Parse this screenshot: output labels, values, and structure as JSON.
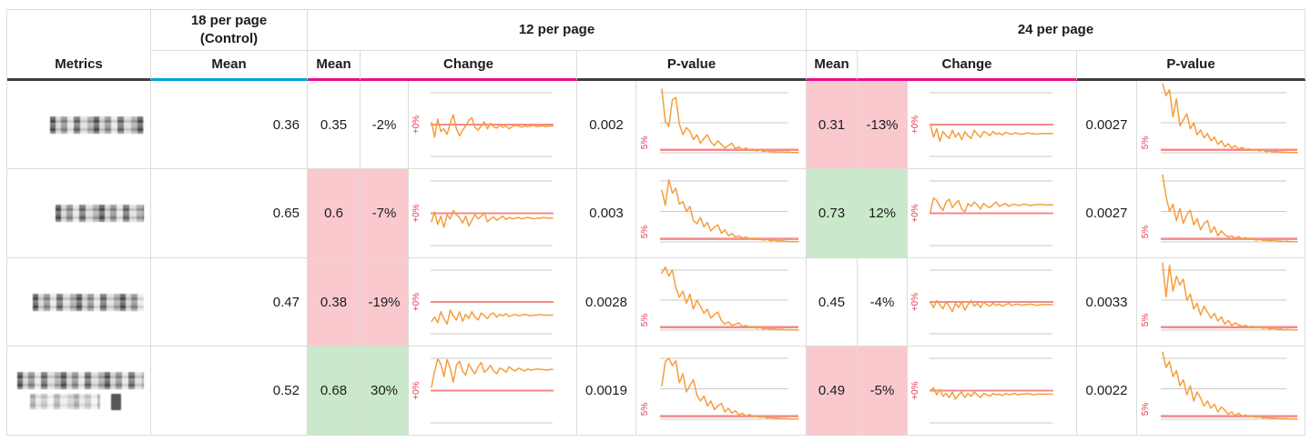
{
  "table": {
    "header": {
      "metrics_label": "Metrics",
      "control": {
        "title": "18 per page (Control)",
        "title_line1": "18 per page",
        "title_line2": "(Control)",
        "mean_label": "Mean"
      },
      "variants": [
        {
          "title": "12 per page",
          "mean_label": "Mean",
          "change_label": "Change",
          "pvalue_label": "P-value"
        },
        {
          "title": "24 per page",
          "mean_label": "Mean",
          "change_label": "Change",
          "pvalue_label": "P-value"
        }
      ]
    },
    "rows": [
      {
        "metric_name_redacted": true,
        "control_mean": "0.36",
        "variants": [
          {
            "mean": "0.35",
            "change": "-2%",
            "pvalue": "0.002",
            "highlight": "none"
          },
          {
            "mean": "0.31",
            "change": "-13%",
            "pvalue": "0.0027",
            "highlight": "negative"
          }
        ]
      },
      {
        "metric_name_redacted": true,
        "control_mean": "0.65",
        "variants": [
          {
            "mean": "0.6",
            "change": "-7%",
            "pvalue": "0.003",
            "highlight": "negative"
          },
          {
            "mean": "0.73",
            "change": "12%",
            "pvalue": "0.0027",
            "highlight": "positive"
          }
        ]
      },
      {
        "metric_name_redacted": true,
        "control_mean": "0.47",
        "variants": [
          {
            "mean": "0.38",
            "change": "-19%",
            "pvalue": "0.0028",
            "highlight": "negative"
          },
          {
            "mean": "0.45",
            "change": "-4%",
            "pvalue": "0.0033",
            "highlight": "none"
          }
        ]
      },
      {
        "metric_name_redacted": true,
        "control_mean": "0.52",
        "variants": [
          {
            "mean": "0.68",
            "change": "30%",
            "pvalue": "0.0019",
            "highlight": "positive"
          },
          {
            "mean": "0.49",
            "change": "-5%",
            "pvalue": "0.0022",
            "highlight": "negative"
          }
        ]
      }
    ]
  },
  "colors": {
    "negative_bg": "#f9c9ce",
    "positive_bg": "#c9e9ca",
    "accent_cyan": "#00a4dc",
    "accent_magenta": "#eb0d8c",
    "accent_dark": "#3d3d3d",
    "line_orange": "#f59e3d",
    "ref_line": "#f48a8a",
    "ref_label": "#e8384f",
    "gridline": "#c9c9c9",
    "border": "#dcdcdc",
    "text": "#1c1c1e"
  },
  "chart_data": {
    "type": "line",
    "description": "Per metric row and page-size variant: relative change over time (%) vs +0% reference, and p-value over time vs 5% significance line.",
    "rows": [
      {
        "metric": "(redacted)",
        "control_mean": 0.36,
        "variants": [
          {
            "variant": "12 per page",
            "mean": 0.35,
            "change_pct": -2,
            "pvalue": 0.002,
            "change_axis_label": "+0%",
            "pvalue_axis_label": "5%",
            "pvalue_ref": 0.05,
            "change_series_pct": [
              3,
              -18,
              8,
              -10,
              -6,
              -14,
              2,
              14,
              -6,
              -16,
              -8,
              -2,
              6,
              10,
              -4,
              -8,
              -2,
              4,
              -6,
              2,
              -3,
              -5,
              -1,
              -4,
              -2,
              -6,
              -3,
              -1,
              -2,
              -4,
              -2,
              -3,
              -2,
              -1,
              -3,
              -2,
              -2,
              -3,
              -2,
              -2
            ],
            "pvalue_series": [
              1.06,
              0.52,
              0.44,
              0.88,
              0.92,
              0.48,
              0.3,
              0.42,
              0.36,
              0.22,
              0.3,
              0.16,
              0.24,
              0.3,
              0.18,
              0.12,
              0.2,
              0.14,
              0.08,
              0.12,
              0.16,
              0.07,
              0.1,
              0.05,
              0.08,
              0.04,
              0.06,
              0.03,
              0.05,
              0.02,
              0.035,
              0.015,
              0.02,
              0.01,
              0.015,
              0.008,
              0.01,
              0.005,
              0.004,
              0.002
            ]
          },
          {
            "variant": "24 per page",
            "mean": 0.31,
            "change_pct": -13,
            "pvalue": 0.0027,
            "change_axis_label": "+0%",
            "pvalue_axis_label": "5%",
            "pvalue_ref": 0.05,
            "change_series_pct": [
              0,
              -18,
              -6,
              -24,
              -10,
              -16,
              -20,
              -8,
              -18,
              -12,
              -22,
              -10,
              -16,
              -20,
              -8,
              -14,
              -18,
              -10,
              -12,
              -16,
              -10,
              -14,
              -12,
              -15,
              -11,
              -13,
              -14,
              -12,
              -13,
              -14,
              -13,
              -12,
              -13,
              -13,
              -14,
              -13,
              -13,
              -13,
              -13,
              -13
            ],
            "pvalue_series": [
              1.15,
              0.95,
              1.05,
              0.6,
              0.9,
              0.45,
              0.55,
              0.65,
              0.4,
              0.5,
              0.3,
              0.38,
              0.25,
              0.32,
              0.2,
              0.26,
              0.14,
              0.2,
              0.1,
              0.15,
              0.08,
              0.12,
              0.06,
              0.09,
              0.05,
              0.07,
              0.04,
              0.055,
              0.03,
              0.045,
              0.02,
              0.03,
              0.015,
              0.02,
              0.01,
              0.012,
              0.007,
              0.005,
              0.004,
              0.0027
            ]
          }
        ]
      },
      {
        "metric": "(redacted)",
        "control_mean": 0.65,
        "variants": [
          {
            "variant": "12 per page",
            "mean": 0.6,
            "change_pct": -7,
            "pvalue": 0.003,
            "change_axis_label": "+0%",
            "pvalue_axis_label": "5%",
            "pvalue_ref": 0.05,
            "change_series_pct": [
              -12,
              2,
              -16,
              -4,
              -20,
              -2,
              -8,
              4,
              -2,
              -6,
              -14,
              -4,
              -18,
              -10,
              -2,
              -8,
              -4,
              0,
              -12,
              -8,
              -5,
              -10,
              -7,
              -4,
              -9,
              -6,
              -8,
              -7,
              -6,
              -8,
              -7,
              -6,
              -7,
              -8,
              -7,
              -7,
              -6,
              -7,
              -7,
              -7
            ],
            "pvalue_series": [
              0.85,
              0.6,
              1.02,
              0.8,
              0.88,
              0.62,
              0.66,
              0.5,
              0.58,
              0.35,
              0.3,
              0.4,
              0.25,
              0.32,
              0.18,
              0.24,
              0.28,
              0.14,
              0.2,
              0.1,
              0.14,
              0.08,
              0.1,
              0.06,
              0.08,
              0.05,
              0.06,
              0.04,
              0.05,
              0.03,
              0.04,
              0.02,
              0.03,
              0.015,
              0.02,
              0.01,
              0.008,
              0.006,
              0.004,
              0.003
            ]
          },
          {
            "variant": "24 per page",
            "mean": 0.73,
            "change_pct": 12,
            "pvalue": 0.0027,
            "change_axis_label": "+0%",
            "pvalue_axis_label": "5%",
            "pvalue_ref": 0.05,
            "change_series_pct": [
              2,
              22,
              18,
              10,
              4,
              16,
              20,
              8,
              14,
              18,
              6,
              2,
              14,
              10,
              16,
              12,
              6,
              14,
              10,
              8,
              12,
              16,
              10,
              12,
              14,
              10,
              12,
              13,
              11,
              12,
              13,
              12,
              11,
              12,
              12,
              13,
              12,
              12,
              12,
              12
            ],
            "pvalue_series": [
              1.1,
              0.75,
              0.5,
              0.62,
              0.35,
              0.55,
              0.3,
              0.45,
              0.52,
              0.28,
              0.38,
              0.2,
              0.3,
              0.35,
              0.15,
              0.25,
              0.1,
              0.18,
              0.12,
              0.08,
              0.1,
              0.06,
              0.09,
              0.05,
              0.07,
              0.04,
              0.05,
              0.03,
              0.04,
              0.025,
              0.03,
              0.02,
              0.025,
              0.012,
              0.015,
              0.008,
              0.01,
              0.005,
              0.004,
              0.0027
            ]
          }
        ]
      },
      {
        "metric": "(redacted)",
        "control_mean": 0.47,
        "variants": [
          {
            "variant": "12 per page",
            "mean": 0.38,
            "change_pct": -19,
            "pvalue": 0.0028,
            "change_axis_label": "+0%",
            "pvalue_axis_label": "5%",
            "pvalue_ref": 0.05,
            "change_series_pct": [
              -28,
              -22,
              -30,
              -14,
              -24,
              -32,
              -12,
              -20,
              -26,
              -14,
              -28,
              -18,
              -24,
              -14,
              -22,
              -26,
              -16,
              -20,
              -24,
              -18,
              -16,
              -22,
              -18,
              -20,
              -17,
              -21,
              -19,
              -18,
              -20,
              -19,
              -18,
              -19,
              -20,
              -19,
              -19,
              -18,
              -19,
              -19,
              -19,
              -19
            ],
            "pvalue_series": [
              0.95,
              1.05,
              0.9,
              1.0,
              0.7,
              0.55,
              0.65,
              0.45,
              0.6,
              0.35,
              0.5,
              0.4,
              0.28,
              0.35,
              0.2,
              0.26,
              0.3,
              0.16,
              0.1,
              0.14,
              0.08,
              0.1,
              0.12,
              0.06,
              0.08,
              0.04,
              0.06,
              0.03,
              0.045,
              0.02,
              0.03,
              0.015,
              0.02,
              0.01,
              0.015,
              0.008,
              0.006,
              0.005,
              0.004,
              0.0028
            ]
          },
          {
            "variant": "24 per page",
            "mean": 0.45,
            "change_pct": -4,
            "pvalue": 0.0033,
            "change_axis_label": "+0%",
            "pvalue_axis_label": "5%",
            "pvalue_ref": 0.05,
            "change_series_pct": [
              0,
              -8,
              2,
              -4,
              -10,
              0,
              -6,
              -14,
              -2,
              -8,
              0,
              -12,
              -4,
              2,
              -6,
              -2,
              -8,
              0,
              -4,
              -6,
              -2,
              -5,
              -3,
              -6,
              -4,
              -2,
              -5,
              -4,
              -3,
              -5,
              -4,
              -4,
              -3,
              -4,
              -5,
              -4,
              -4,
              -4,
              -4,
              -4
            ],
            "pvalue_series": [
              1.12,
              0.55,
              1.08,
              0.65,
              0.9,
              0.75,
              0.85,
              0.5,
              0.6,
              0.35,
              0.45,
              0.25,
              0.4,
              0.3,
              0.2,
              0.28,
              0.15,
              0.22,
              0.1,
              0.16,
              0.08,
              0.12,
              0.09,
              0.06,
              0.08,
              0.05,
              0.065,
              0.04,
              0.05,
              0.03,
              0.04,
              0.02,
              0.03,
              0.012,
              0.018,
              0.008,
              0.01,
              0.006,
              0.004,
              0.0033
            ]
          }
        ]
      },
      {
        "metric": "(redacted)",
        "control_mean": 0.52,
        "variants": [
          {
            "variant": "12 per page",
            "mean": 0.68,
            "change_pct": 30,
            "pvalue": 0.0019,
            "change_axis_label": "+0%",
            "pvalue_axis_label": "5%",
            "pvalue_ref": 0.05,
            "change_series_pct": [
              5,
              28,
              45,
              38,
              20,
              44,
              32,
              12,
              36,
              42,
              28,
              22,
              38,
              30,
              24,
              34,
              40,
              26,
              30,
              36,
              28,
              24,
              32,
              30,
              26,
              34,
              30,
              28,
              32,
              30,
              28,
              31,
              29,
              30,
              31,
              30,
              30,
              29,
              30,
              30
            ],
            "pvalue_series": [
              0.55,
              0.95,
              1.0,
              0.88,
              0.96,
              0.6,
              0.75,
              0.45,
              0.55,
              0.65,
              0.4,
              0.3,
              0.38,
              0.22,
              0.3,
              0.16,
              0.22,
              0.26,
              0.12,
              0.18,
              0.1,
              0.14,
              0.07,
              0.1,
              0.05,
              0.08,
              0.04,
              0.06,
              0.03,
              0.04,
              0.02,
              0.03,
              0.015,
              0.02,
              0.01,
              0.012,
              0.006,
              0.004,
              0.003,
              0.0019
            ]
          },
          {
            "variant": "24 per page",
            "mean": 0.49,
            "change_pct": -5,
            "pvalue": 0.0022,
            "change_axis_label": "+0%",
            "pvalue_axis_label": "5%",
            "pvalue_ref": 0.05,
            "change_series_pct": [
              0,
              4,
              -6,
              2,
              -8,
              -4,
              -10,
              -2,
              -12,
              -6,
              -2,
              -10,
              -4,
              -8,
              -2,
              -6,
              -10,
              -4,
              -6,
              -8,
              -4,
              -6,
              -5,
              -7,
              -4,
              -6,
              -5,
              -4,
              -6,
              -5,
              -5,
              -4,
              -5,
              -6,
              -5,
              -5,
              -5,
              -5,
              -5,
              -5
            ],
            "pvalue_series": [
              1.1,
              0.85,
              0.95,
              0.7,
              0.8,
              0.55,
              0.65,
              0.4,
              0.55,
              0.3,
              0.45,
              0.35,
              0.22,
              0.3,
              0.18,
              0.25,
              0.12,
              0.2,
              0.15,
              0.08,
              0.12,
              0.06,
              0.1,
              0.05,
              0.07,
              0.04,
              0.055,
              0.03,
              0.04,
              0.02,
              0.03,
              0.015,
              0.02,
              0.01,
              0.014,
              0.007,
              0.009,
              0.005,
              0.003,
              0.0022
            ]
          }
        ]
      }
    ]
  }
}
